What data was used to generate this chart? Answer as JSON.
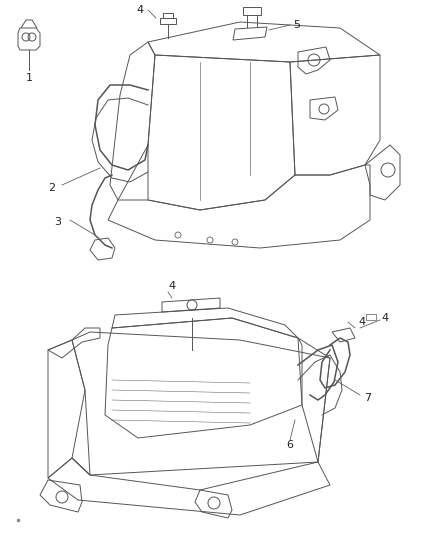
{
  "bg_color": "#ffffff",
  "line_color": "#555555",
  "label_color": "#222222",
  "fig_width": 4.38,
  "fig_height": 5.33,
  "dpi": 100,
  "lw": 0.7,
  "lw_thick": 1.1
}
